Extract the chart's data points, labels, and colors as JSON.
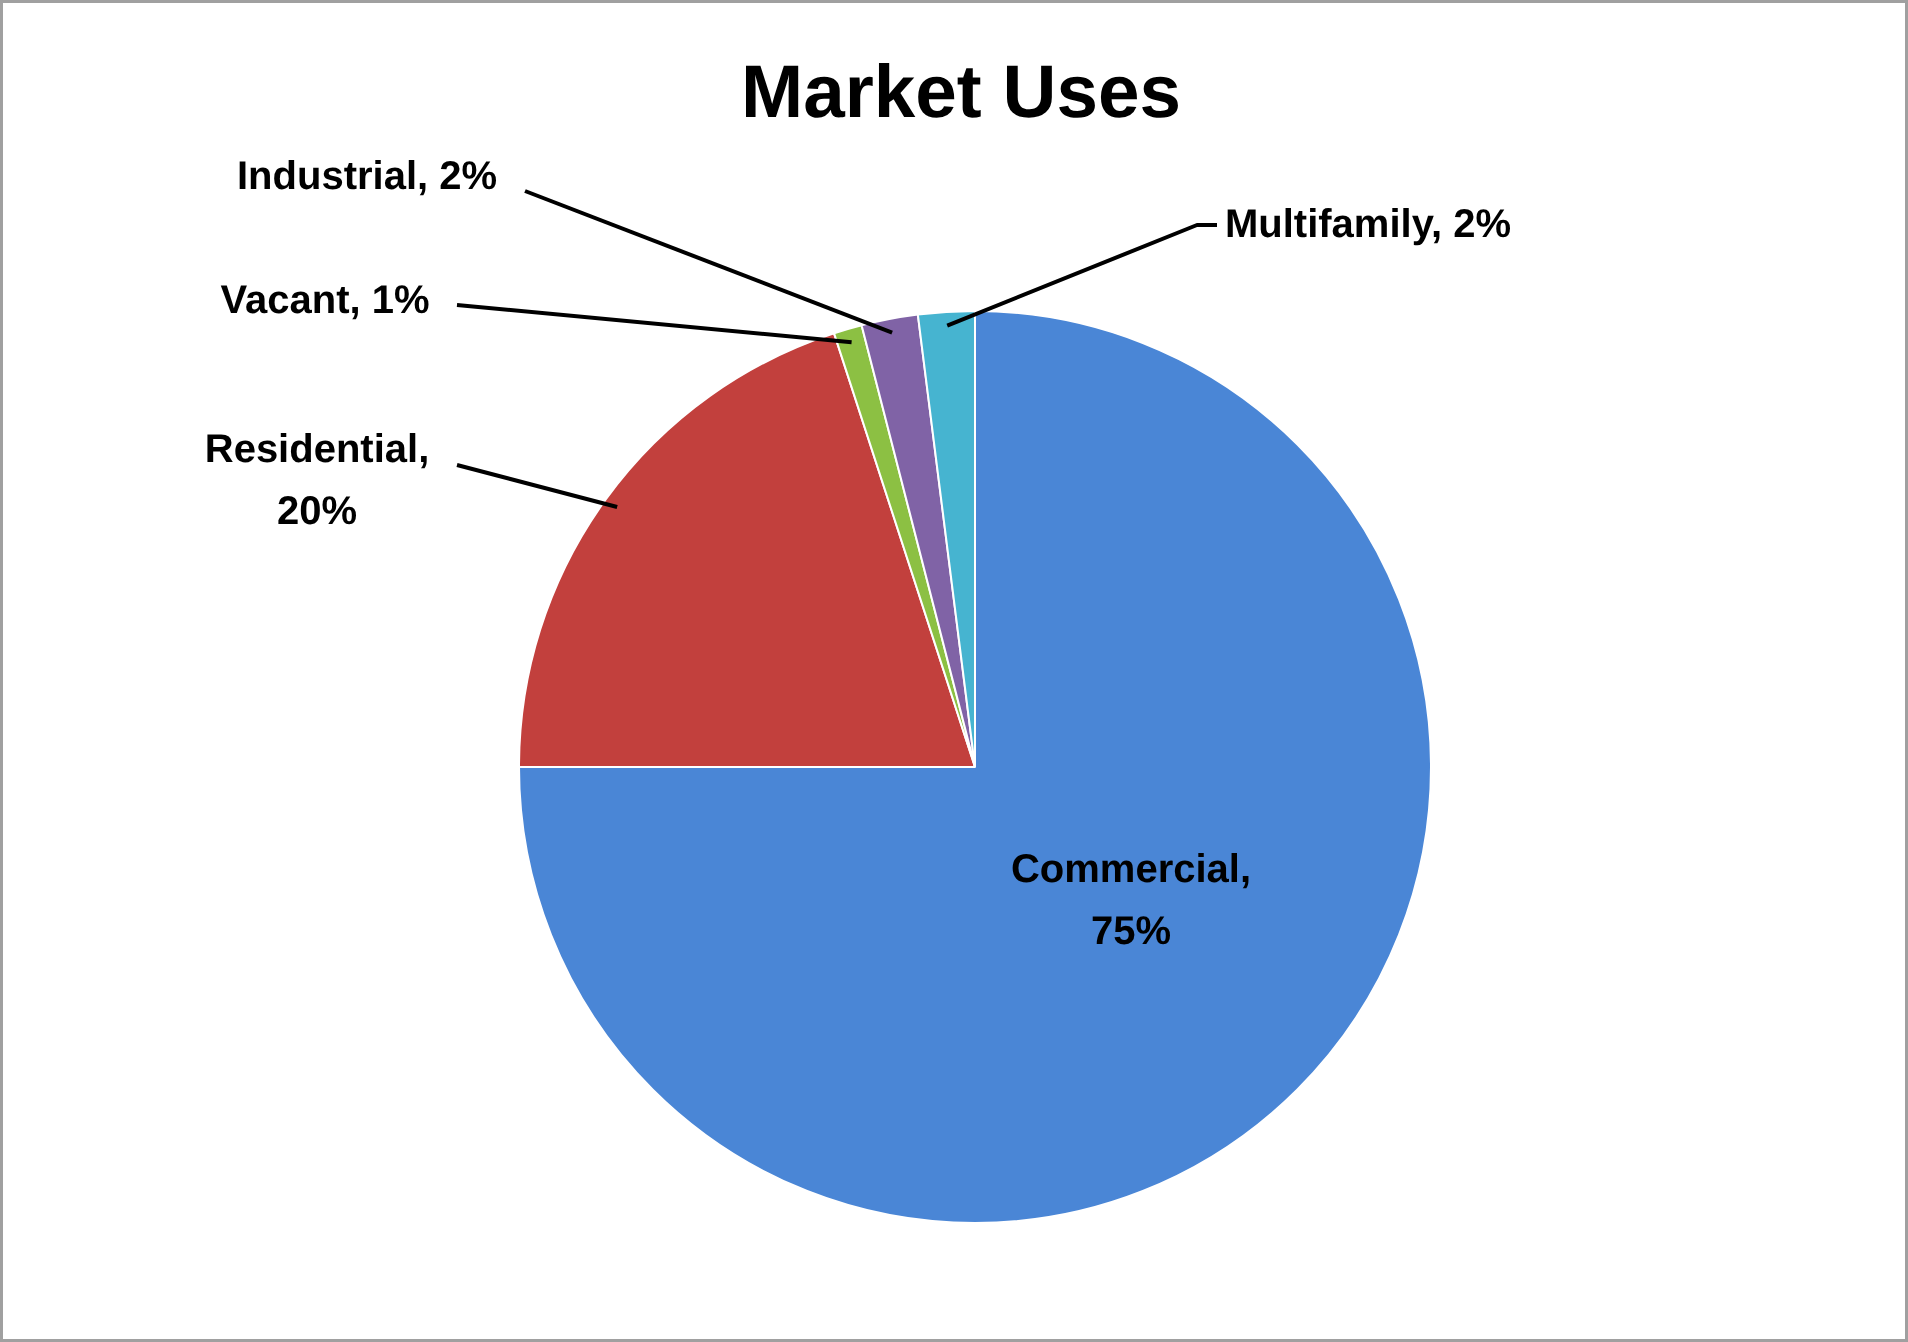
{
  "chart_data": {
    "type": "pie",
    "title": "Market Uses",
    "categories": [
      "Commercial",
      "Residential",
      "Vacant",
      "Industrial",
      "Multifamily"
    ],
    "values": [
      75,
      20,
      1,
      2,
      2
    ],
    "colors": [
      "#4a86d6",
      "#c2403d",
      "#8cc043",
      "#8063a6",
      "#46b4d0"
    ],
    "value_labels": [
      ", 75%",
      ", 20%",
      ", 1%",
      ", 2%",
      ", 2%"
    ]
  }
}
